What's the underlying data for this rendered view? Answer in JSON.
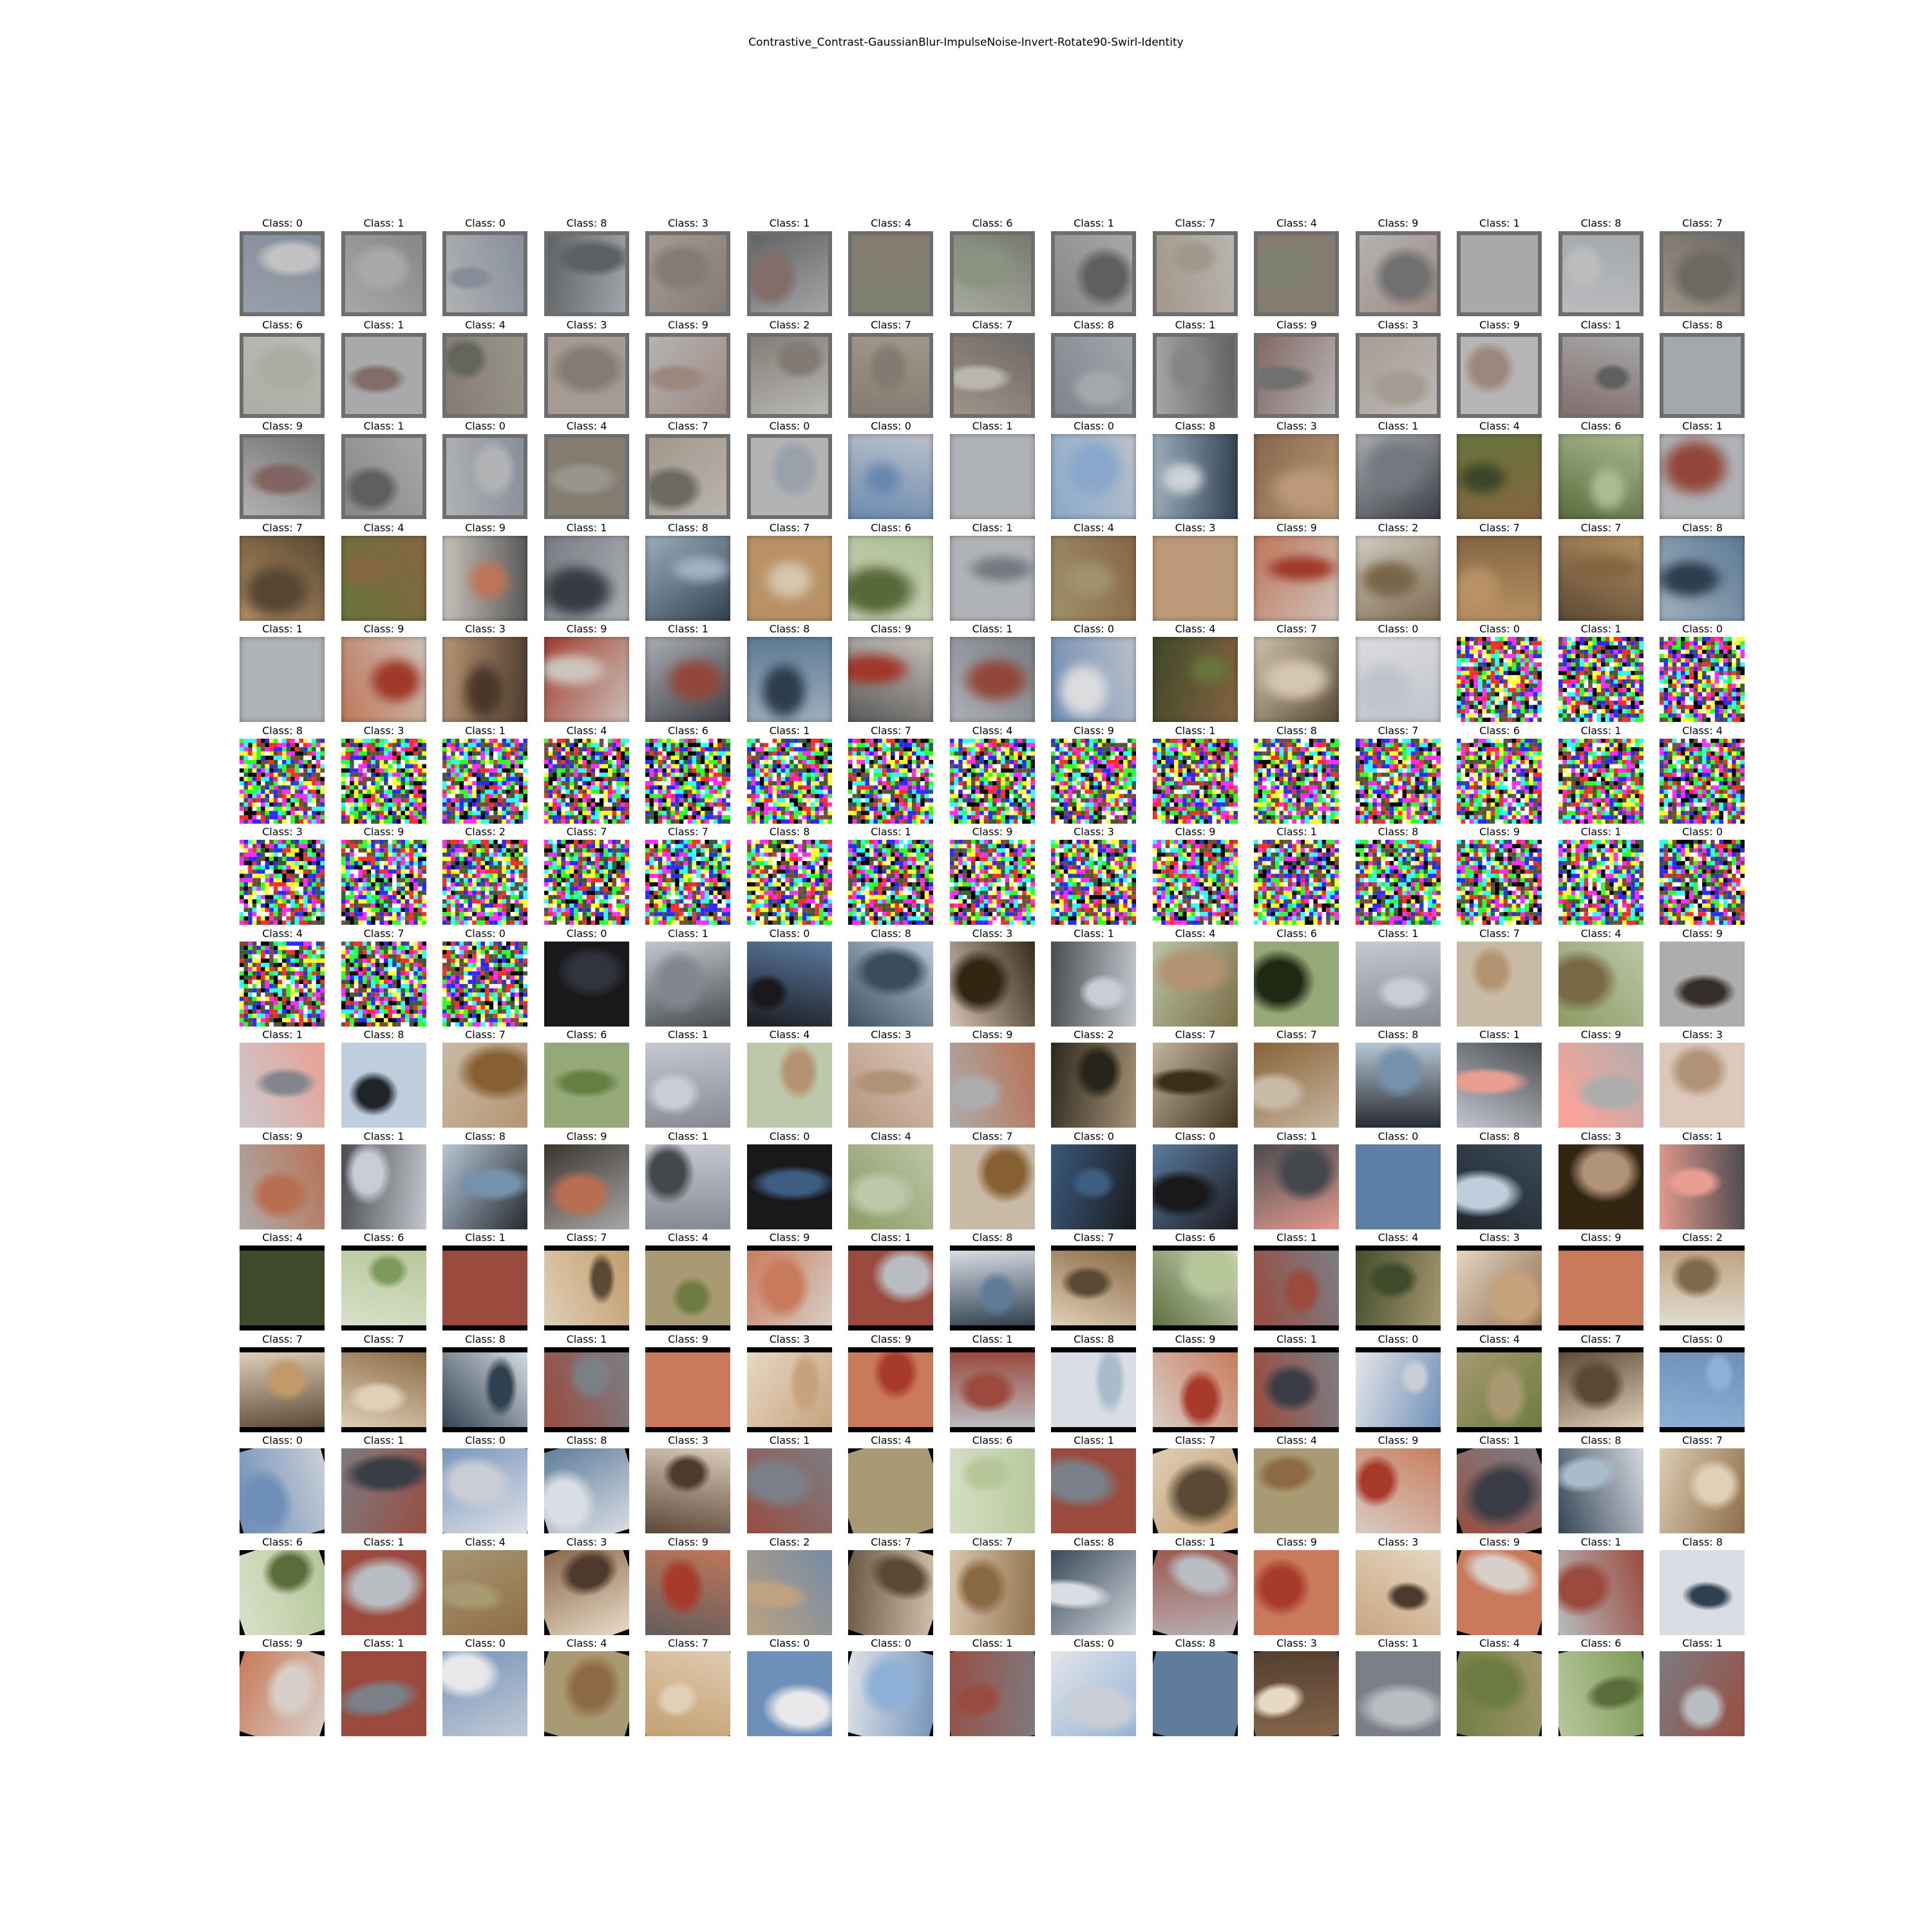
{
  "figure": {
    "title": "Contrastive_Contrast-GaussianBlur-ImpulseNoise-Invert-Rotate90-Swirl-Identity"
  },
  "grid": {
    "rows": 15,
    "columns": 15,
    "labels": [
      [
        "Class: 0",
        "Class: 1",
        "Class: 0",
        "Class: 8",
        "Class: 3",
        "Class: 1",
        "Class: 4",
        "Class: 6",
        "Class: 1",
        "Class: 7",
        "Class: 4",
        "Class: 9",
        "Class: 1",
        "Class: 8",
        "Class: 7"
      ],
      [
        "Class: 6",
        "Class: 1",
        "Class: 4",
        "Class: 3",
        "Class: 9",
        "Class: 2",
        "Class: 7",
        "Class: 7",
        "Class: 8",
        "Class: 1",
        "Class: 9",
        "Class: 3",
        "Class: 9",
        "Class: 1",
        "Class: 8"
      ],
      [
        "Class: 9",
        "Class: 1",
        "Class: 0",
        "Class: 4",
        "Class: 7",
        "Class: 0",
        "Class: 0",
        "Class: 1",
        "Class: 0",
        "Class: 8",
        "Class: 3",
        "Class: 1",
        "Class: 4",
        "Class: 6",
        "Class: 1"
      ],
      [
        "Class: 7",
        "Class: 4",
        "Class: 9",
        "Class: 1",
        "Class: 8",
        "Class: 7",
        "Class: 6",
        "Class: 1",
        "Class: 4",
        "Class: 3",
        "Class: 9",
        "Class: 2",
        "Class: 7",
        "Class: 7",
        "Class: 8"
      ],
      [
        "Class: 1",
        "Class: 9",
        "Class: 3",
        "Class: 9",
        "Class: 1",
        "Class: 8",
        "Class: 9",
        "Class: 1",
        "Class: 0",
        "Class: 4",
        "Class: 7",
        "Class: 0",
        "Class: 0",
        "Class: 1",
        "Class: 0"
      ],
      [
        "Class: 8",
        "Class: 3",
        "Class: 1",
        "Class: 4",
        "Class: 6",
        "Class: 1",
        "Class: 7",
        "Class: 4",
        "Class: 9",
        "Class: 1",
        "Class: 8",
        "Class: 7",
        "Class: 6",
        "Class: 1",
        "Class: 4"
      ],
      [
        "Class: 3",
        "Class: 9",
        "Class: 2",
        "Class: 7",
        "Class: 7",
        "Class: 8",
        "Class: 1",
        "Class: 9",
        "Class: 3",
        "Class: 9",
        "Class: 1",
        "Class: 8",
        "Class: 9",
        "Class: 1",
        "Class: 0"
      ],
      [
        "Class: 4",
        "Class: 7",
        "Class: 0",
        "Class: 0",
        "Class: 1",
        "Class: 0",
        "Class: 8",
        "Class: 3",
        "Class: 1",
        "Class: 4",
        "Class: 6",
        "Class: 1",
        "Class: 7",
        "Class: 4",
        "Class: 9"
      ],
      [
        "Class: 1",
        "Class: 8",
        "Class: 7",
        "Class: 6",
        "Class: 1",
        "Class: 4",
        "Class: 3",
        "Class: 9",
        "Class: 2",
        "Class: 7",
        "Class: 7",
        "Class: 8",
        "Class: 1",
        "Class: 9",
        "Class: 3"
      ],
      [
        "Class: 9",
        "Class: 1",
        "Class: 8",
        "Class: 9",
        "Class: 1",
        "Class: 0",
        "Class: 4",
        "Class: 7",
        "Class: 0",
        "Class: 0",
        "Class: 1",
        "Class: 0",
        "Class: 8",
        "Class: 3",
        "Class: 1"
      ],
      [
        "Class: 4",
        "Class: 6",
        "Class: 1",
        "Class: 7",
        "Class: 4",
        "Class: 9",
        "Class: 1",
        "Class: 8",
        "Class: 7",
        "Class: 6",
        "Class: 1",
        "Class: 4",
        "Class: 3",
        "Class: 9",
        "Class: 2"
      ],
      [
        "Class: 7",
        "Class: 7",
        "Class: 8",
        "Class: 1",
        "Class: 9",
        "Class: 3",
        "Class: 9",
        "Class: 1",
        "Class: 8",
        "Class: 9",
        "Class: 1",
        "Class: 0",
        "Class: 4",
        "Class: 7",
        "Class: 0"
      ],
      [
        "Class: 0",
        "Class: 1",
        "Class: 0",
        "Class: 8",
        "Class: 3",
        "Class: 1",
        "Class: 4",
        "Class: 6",
        "Class: 1",
        "Class: 7",
        "Class: 4",
        "Class: 9",
        "Class: 1",
        "Class: 8",
        "Class: 7"
      ],
      [
        "Class: 6",
        "Class: 1",
        "Class: 4",
        "Class: 3",
        "Class: 9",
        "Class: 2",
        "Class: 7",
        "Class: 7",
        "Class: 8",
        "Class: 1",
        "Class: 9",
        "Class: 3",
        "Class: 9",
        "Class: 1",
        "Class: 8"
      ],
      [
        "Class: 9",
        "Class: 1",
        "Class: 0",
        "Class: 4",
        "Class: 7",
        "Class: 0",
        "Class: 0",
        "Class: 1",
        "Class: 0",
        "Class: 8",
        "Class: 3",
        "Class: 1",
        "Class: 4",
        "Class: 6",
        "Class: 1"
      ]
    ]
  }
}
